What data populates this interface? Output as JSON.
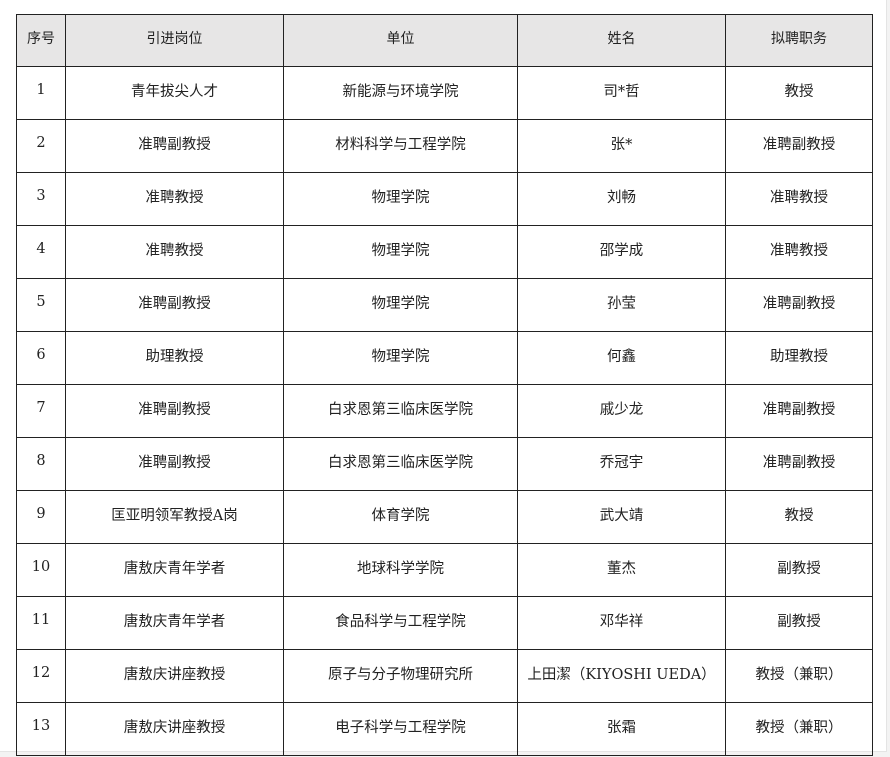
{
  "table": {
    "headers": [
      "序号",
      "引进岗位",
      "单位",
      "姓名",
      "拟聘职务"
    ],
    "rows": [
      [
        "1",
        "青年拔尖人才",
        "新能源与环境学院",
        "司*哲",
        "教授"
      ],
      [
        "2",
        "准聘副教授",
        "材料科学与工程学院",
        "张*",
        "准聘副教授"
      ],
      [
        "3",
        "准聘教授",
        "物理学院",
        "刘畅",
        "准聘教授"
      ],
      [
        "4",
        "准聘教授",
        "物理学院",
        "邵学成",
        "准聘教授"
      ],
      [
        "5",
        "准聘副教授",
        "物理学院",
        "孙莹",
        "准聘副教授"
      ],
      [
        "6",
        "助理教授",
        "物理学院",
        "何鑫",
        "助理教授"
      ],
      [
        "7",
        "准聘副教授",
        "白求恩第三临床医学院",
        "戚少龙",
        "准聘副教授"
      ],
      [
        "8",
        "准聘副教授",
        "白求恩第三临床医学院",
        "乔冠宇",
        "准聘副教授"
      ],
      [
        "9",
        "匡亚明领军教授A岗",
        "体育学院",
        "武大靖",
        "教授"
      ],
      [
        "10",
        "唐敖庆青年学者",
        "地球科学学院",
        "董杰",
        "副教授"
      ],
      [
        "11",
        "唐敖庆青年学者",
        "食品科学与工程学院",
        "邓华祥",
        "副教授"
      ],
      [
        "12",
        "唐敖庆讲座教授",
        "原子与分子物理研究所",
        "上田潔（KIYOSHI UEDA）",
        "教授（兼职）"
      ],
      [
        "13",
        "唐敖庆讲座教授",
        "电子科学与工程学院",
        "张霜",
        "教授（兼职）"
      ]
    ]
  }
}
